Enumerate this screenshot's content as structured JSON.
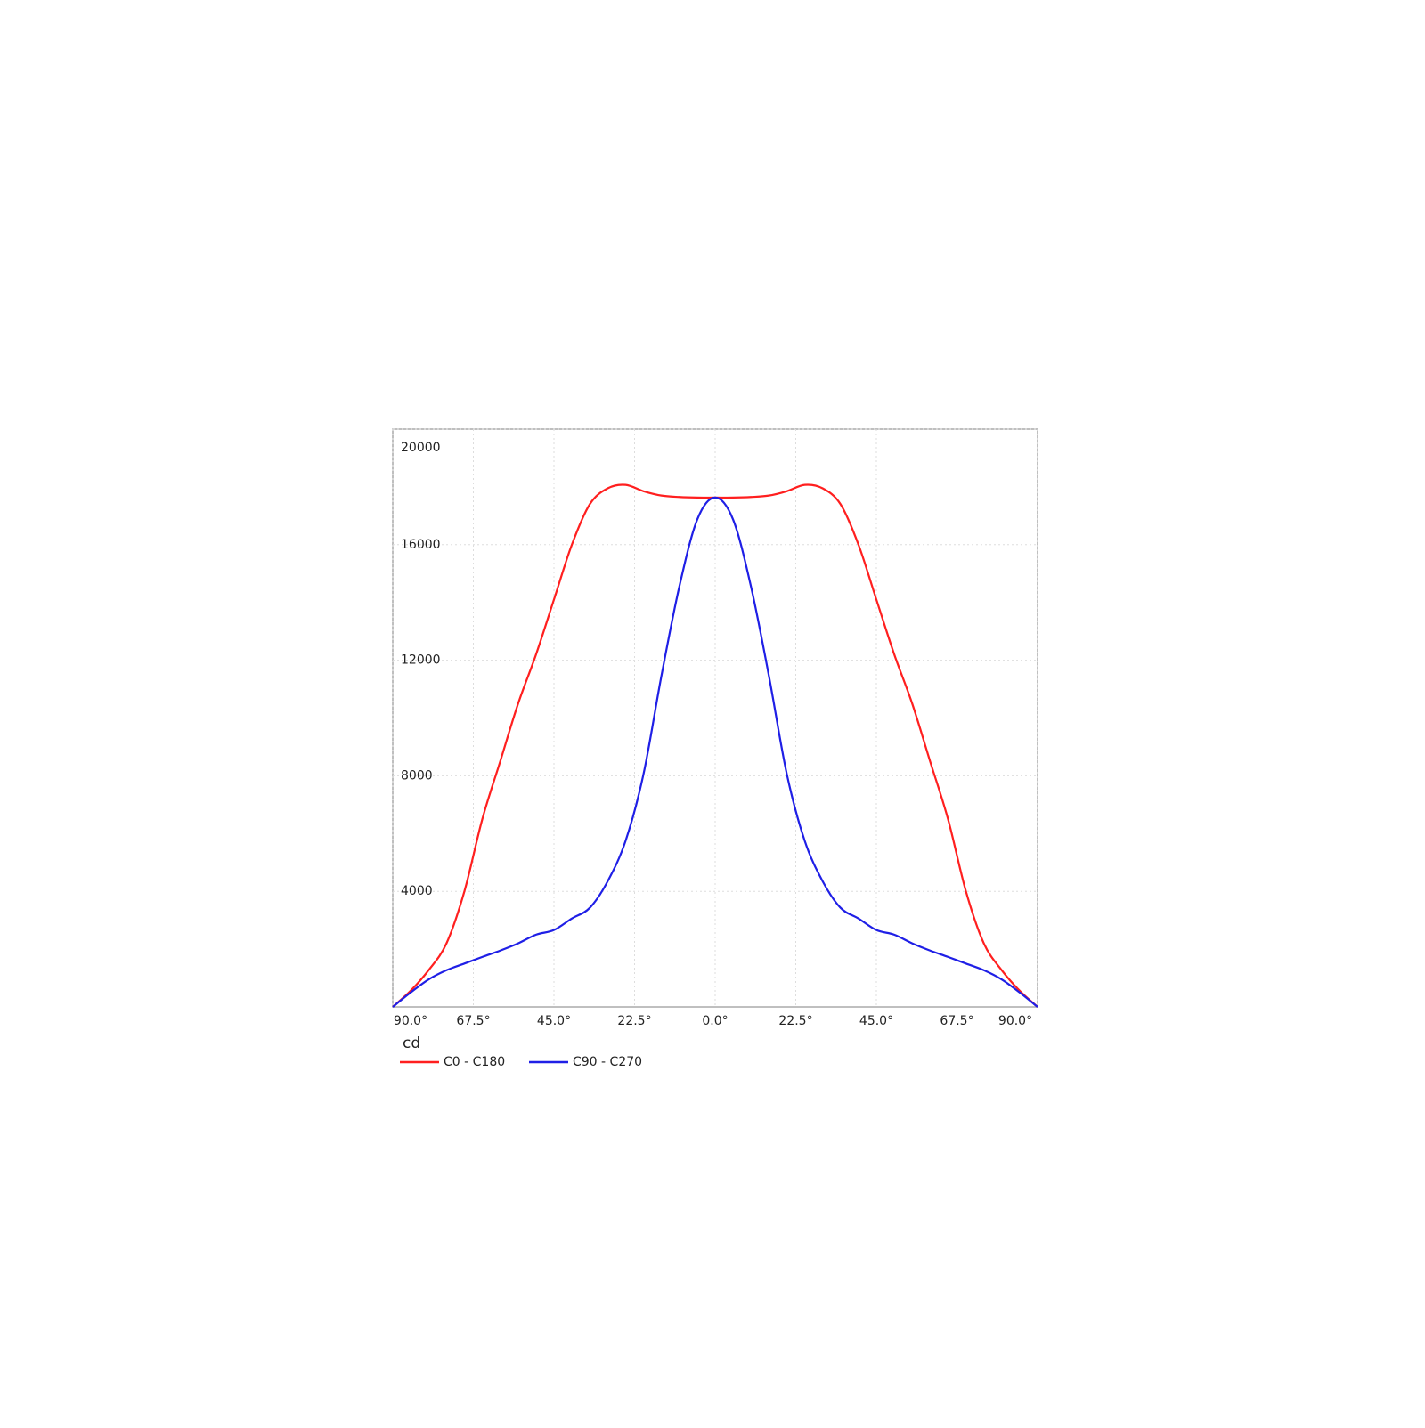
{
  "chart_data": {
    "type": "line",
    "y_label": "cd",
    "x": [
      -90,
      -85,
      -80,
      -75,
      -70,
      -65,
      -60,
      -55,
      -50,
      -45,
      -40,
      -35,
      -30,
      -25,
      -20,
      -15,
      -10,
      -5,
      0,
      5,
      10,
      15,
      20,
      25,
      30,
      35,
      40,
      45,
      50,
      55,
      60,
      65,
      70,
      75,
      80,
      85,
      90
    ],
    "series": [
      {
        "name": "C0 - C180",
        "color": "#ff1f1f",
        "values": [
          0,
          560,
          1270,
          2200,
          4000,
          6500,
          8500,
          10500,
          12200,
          14100,
          16000,
          17400,
          17950,
          18070,
          17850,
          17700,
          17650,
          17630,
          17630,
          17630,
          17650,
          17700,
          17850,
          18070,
          17950,
          17400,
          16000,
          14100,
          12200,
          10500,
          8500,
          6500,
          4000,
          2200,
          1270,
          560,
          0
        ]
      },
      {
        "name": "C90 - C270",
        "color": "#1f1fe6",
        "values": [
          0,
          500,
          950,
          1270,
          1500,
          1730,
          1950,
          2200,
          2500,
          2660,
          3060,
          3430,
          4350,
          5750,
          8060,
          11460,
          14550,
          16870,
          17630,
          16870,
          14550,
          11460,
          8060,
          5750,
          4350,
          3430,
          3060,
          2660,
          2500,
          2200,
          1950,
          1730,
          1500,
          1270,
          950,
          500,
          0
        ]
      }
    ],
    "xlim": [
      -90,
      90
    ],
    "xticks": [
      {
        "value": -90,
        "label": "90.0°"
      },
      {
        "value": -67.5,
        "label": "67.5°"
      },
      {
        "value": -45,
        "label": "45.0°"
      },
      {
        "value": -22.5,
        "label": "22.5°"
      },
      {
        "value": 0,
        "label": "0.0°"
      },
      {
        "value": 22.5,
        "label": "22.5°"
      },
      {
        "value": 45,
        "label": "45.0°"
      },
      {
        "value": 67.5,
        "label": "67.5°"
      },
      {
        "value": 90,
        "label": "90.0°"
      }
    ],
    "ylim": [
      0,
      20000
    ],
    "yticks": [
      4000,
      8000,
      12000,
      16000,
      20000
    ],
    "grid": true
  }
}
